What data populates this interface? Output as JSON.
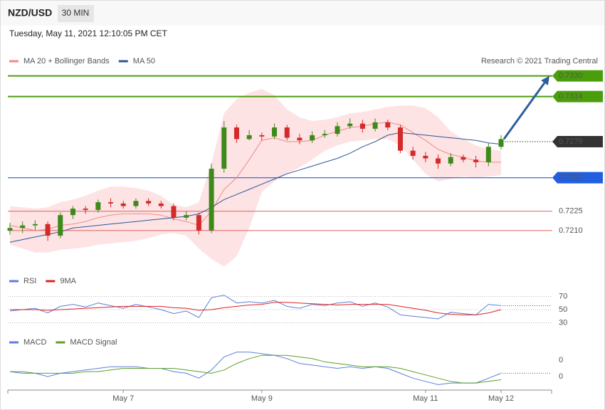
{
  "header": {
    "symbol": "NZD/USD",
    "timeframe": "30 MIN",
    "timestamp": "Tuesday, May 11, 2021 12:10:05 PM CET",
    "copyright": "Research © 2021 Trading Central"
  },
  "chart_data": [
    {
      "type": "candlestick",
      "categories": [
        null,
        null,
        null,
        null,
        null,
        null,
        null,
        null,
        null,
        "May 7",
        null,
        null,
        null,
        null,
        null,
        null,
        null,
        null,
        null,
        null,
        "May 9",
        null,
        null,
        null,
        null,
        null,
        null,
        null,
        null,
        null,
        null,
        null,
        null,
        "May 11",
        null,
        null,
        null,
        null,
        null,
        "May 12"
      ],
      "open": [
        0.721,
        0.7212,
        0.7214,
        0.7215,
        0.7206,
        0.7222,
        0.7227,
        0.7226,
        0.7232,
        0.7231,
        0.7229,
        0.7233,
        0.7231,
        0.7229,
        0.722,
        0.7222,
        0.721,
        0.7258,
        0.729,
        0.7281,
        0.7284,
        0.7283,
        0.729,
        0.7282,
        0.728,
        0.7284,
        0.7285,
        0.7291,
        0.7293,
        0.7289,
        0.7294,
        0.729,
        0.7272,
        0.7268,
        0.7266,
        0.7262,
        0.7267,
        0.7265,
        0.7263,
        0.7275
      ],
      "high": [
        0.7216,
        0.7217,
        0.7218,
        0.7217,
        0.7224,
        0.7229,
        0.7229,
        0.7234,
        0.7235,
        0.7233,
        0.7235,
        0.7235,
        0.7233,
        0.7231,
        0.7225,
        0.7224,
        0.7262,
        0.7295,
        0.7292,
        0.7288,
        0.7286,
        0.7293,
        0.7292,
        0.7285,
        0.7287,
        0.7288,
        0.7294,
        0.7297,
        0.7296,
        0.7297,
        0.7296,
        0.7292,
        0.7275,
        0.7271,
        0.7269,
        0.727,
        0.7269,
        0.7268,
        0.7278,
        0.7284
      ],
      "low": [
        0.7207,
        0.7208,
        0.721,
        0.7202,
        0.7204,
        0.7219,
        0.7223,
        0.7224,
        0.7228,
        0.7227,
        0.7227,
        0.7229,
        0.7227,
        0.7218,
        0.7218,
        0.7207,
        0.7208,
        0.7255,
        0.7278,
        0.728,
        0.728,
        0.7281,
        0.728,
        0.7277,
        0.7278,
        0.7282,
        0.7283,
        0.7289,
        0.7286,
        0.7287,
        0.7288,
        0.727,
        0.7265,
        0.7263,
        0.7258,
        0.726,
        0.7263,
        0.7259,
        0.726,
        0.7273
      ],
      "close": [
        0.7212,
        0.7214,
        0.7215,
        0.7206,
        0.7222,
        0.7227,
        0.7226,
        0.7232,
        0.7231,
        0.7229,
        0.7233,
        0.7231,
        0.7229,
        0.722,
        0.7222,
        0.721,
        0.7258,
        0.729,
        0.7281,
        0.7284,
        0.7283,
        0.729,
        0.7282,
        0.728,
        0.7284,
        0.7285,
        0.7291,
        0.7293,
        0.7289,
        0.7294,
        0.729,
        0.7272,
        0.7268,
        0.7266,
        0.7262,
        0.7267,
        0.7265,
        0.7263,
        0.7275,
        0.7281
      ],
      "up_color": "#3d8a1a",
      "down_color": "#d42a2a",
      "series": [
        {
          "name": "MA 20 + Bollinger Bands",
          "color": "#f08a8a",
          "band_color": "#fde3e3",
          "values": [
            0.7214,
            0.7212,
            0.721,
            0.7211,
            0.7214,
            0.7215,
            0.7217,
            0.722,
            0.7222,
            0.7223,
            0.7223,
            0.7223,
            0.7222,
            0.7219,
            0.7217,
            0.7214,
            0.7225,
            0.7242,
            0.7251,
            0.7265,
            0.728,
            0.7282,
            0.7279,
            0.7279,
            0.728,
            0.7284,
            0.7287,
            0.729,
            0.7291,
            0.7293,
            0.7294,
            0.7292,
            0.7286,
            0.728,
            0.7273,
            0.7269,
            0.7267,
            0.7264,
            0.7263,
            0.7263
          ],
          "upper": [
            0.7229,
            0.7228,
            0.7227,
            0.7228,
            0.7232,
            0.7234,
            0.7237,
            0.7241,
            0.7244,
            0.7244,
            0.7243,
            0.7241,
            0.7237,
            0.723,
            0.7228,
            0.7232,
            0.7262,
            0.7301,
            0.7312,
            0.7317,
            0.732,
            0.7315,
            0.7304,
            0.7298,
            0.7295,
            0.7296,
            0.7298,
            0.7301,
            0.7302,
            0.7304,
            0.7306,
            0.7307,
            0.7307,
            0.7305,
            0.7298,
            0.7287,
            0.7281,
            0.7276,
            0.7273,
            0.7272
          ],
          "lower": [
            0.7199,
            0.7196,
            0.7193,
            0.7193,
            0.7195,
            0.7196,
            0.7197,
            0.7199,
            0.72,
            0.7201,
            0.7202,
            0.7204,
            0.7207,
            0.7208,
            0.7206,
            0.7196,
            0.7188,
            0.7182,
            0.719,
            0.7212,
            0.724,
            0.7248,
            0.7254,
            0.7259,
            0.7265,
            0.7272,
            0.7276,
            0.7279,
            0.728,
            0.7281,
            0.7281,
            0.7276,
            0.7265,
            0.7254,
            0.7248,
            0.725,
            0.7252,
            0.7251,
            0.7252,
            0.7253
          ]
        },
        {
          "name": "MA 50",
          "color": "#2e5596",
          "values": [
            0.7201,
            0.7203,
            0.7205,
            0.7207,
            0.7209,
            0.7212,
            0.7213,
            0.7214,
            0.7215,
            0.7216,
            0.7217,
            0.7218,
            0.7219,
            0.722,
            0.7221,
            0.7223,
            0.7228,
            0.7234,
            0.7238,
            0.7242,
            0.7246,
            0.725,
            0.7254,
            0.7257,
            0.726,
            0.7263,
            0.7266,
            0.727,
            0.7275,
            0.7279,
            0.7284,
            0.7286,
            0.7285,
            0.7284,
            0.7283,
            0.7282,
            0.7281,
            0.728,
            0.7278,
            0.7277
          ]
        }
      ],
      "ylim": [
        0.7179,
        0.7337
      ],
      "levels": [
        {
          "value": 0.733,
          "label": "0.7330",
          "color": "#4a9e0c",
          "line": "solid",
          "box": true
        },
        {
          "value": 0.7314,
          "label": "0.7314",
          "color": "#4a9e0c",
          "line": "solid",
          "box": true
        },
        {
          "value": 0.7279,
          "label": "0.7279",
          "color": "#333333",
          "line": "dotted",
          "box": true
        },
        {
          "value": 0.7251,
          "label": "0.7251",
          "color": "#1f5fe0",
          "line": "solid",
          "box": true
        },
        {
          "value": 0.7225,
          "label": "0.7225",
          "color": "#e06060",
          "line": "solid",
          "box": false
        },
        {
          "value": 0.721,
          "label": "0.7210",
          "color": "#e06060",
          "line": "solid",
          "box": false
        }
      ],
      "arrow_color": "#2f5d9e"
    },
    {
      "type": "line",
      "series": [
        {
          "name": "RSI",
          "color": "#5b7fdb",
          "values": [
            48,
            50,
            52,
            45,
            55,
            58,
            54,
            60,
            56,
            52,
            58,
            54,
            50,
            44,
            48,
            38,
            68,
            72,
            60,
            62,
            60,
            64,
            55,
            52,
            58,
            56,
            60,
            62,
            55,
            60,
            54,
            42,
            40,
            38,
            36,
            46,
            44,
            42,
            58,
            56
          ]
        },
        {
          "name": "9MA",
          "color": "#e02020",
          "values": [
            50,
            50,
            50,
            49,
            50,
            51,
            52,
            53,
            54,
            55,
            55,
            55,
            55,
            53,
            52,
            49,
            50,
            53,
            55,
            57,
            58,
            61,
            61,
            60,
            59,
            58,
            57,
            58,
            58,
            58,
            58,
            55,
            52,
            49,
            45,
            43,
            42,
            42,
            45,
            50
          ]
        }
      ],
      "ylim": [
        23,
        77
      ],
      "yticks": [
        30,
        50,
        70
      ],
      "grid": true
    },
    {
      "type": "line",
      "series": [
        {
          "name": "MACD",
          "color": "#5b7fdb",
          "values": [
            0.0003,
            0.0002,
            0.0002,
            0.0,
            0.0002,
            0.0003,
            0.0004,
            0.0005,
            0.0006,
            0.0006,
            0.0006,
            0.0005,
            0.0005,
            0.0003,
            0.0002,
            -0.0001,
            0.0004,
            0.0012,
            0.0015,
            0.0015,
            0.0014,
            0.0013,
            0.0011,
            0.0008,
            0.0007,
            0.0006,
            0.0005,
            0.0006,
            0.0005,
            0.0006,
            0.0005,
            0.0002,
            -0.0001,
            -0.0003,
            -0.0005,
            -0.0004,
            -0.0004,
            -0.0004,
            -0.0001,
            0.0002
          ]
        },
        {
          "name": "MACD Signal",
          "color": "#5aa02c",
          "values": [
            0.0003,
            0.0003,
            0.0002,
            0.0002,
            0.0002,
            0.0002,
            0.0003,
            0.0003,
            0.0004,
            0.0005,
            0.0005,
            0.0005,
            0.0005,
            0.0005,
            0.0004,
            0.0003,
            0.0002,
            0.0004,
            0.0008,
            0.0011,
            0.0013,
            0.0013,
            0.0013,
            0.0012,
            0.0011,
            0.0009,
            0.0008,
            0.0007,
            0.0006,
            0.0006,
            0.0006,
            0.0005,
            0.0003,
            0.0001,
            -0.0001,
            -0.0003,
            -0.0004,
            -0.0004,
            -0.0003,
            -0.0002
          ]
        }
      ],
      "ylim": [
        -0.0007,
        0.0017
      ],
      "yticks": [
        {
          "value": 0.001,
          "label": "0"
        },
        {
          "value": 0,
          "label": "0"
        }
      ],
      "grid": false
    }
  ]
}
